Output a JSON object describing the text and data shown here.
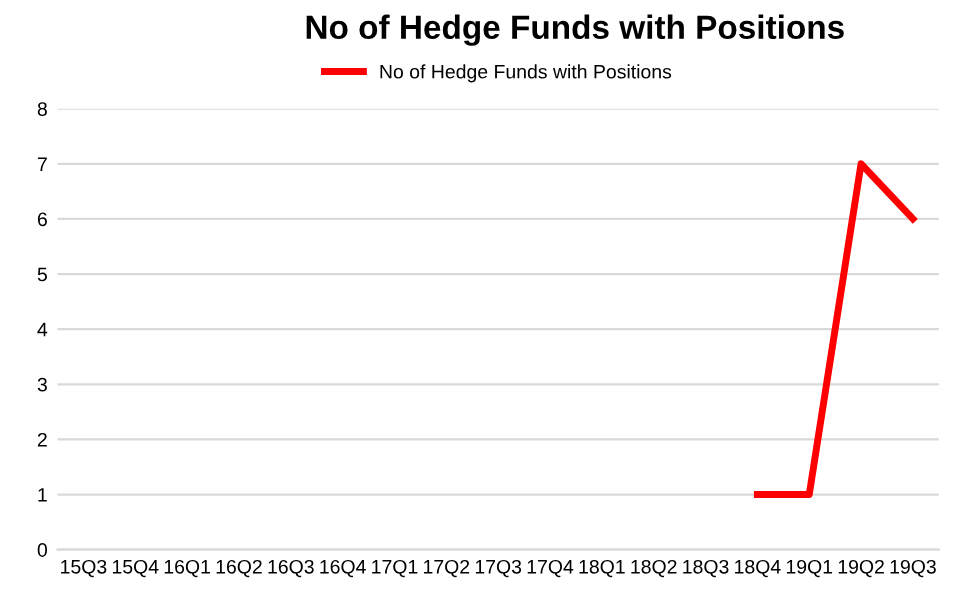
{
  "chart_data": {
    "type": "line",
    "title": "No of Hedge Funds with Positions",
    "categories": [
      "15Q3",
      "15Q4",
      "16Q1",
      "16Q2",
      "16Q3",
      "16Q4",
      "17Q1",
      "17Q2",
      "17Q3",
      "17Q4",
      "18Q1",
      "18Q2",
      "18Q3",
      "18Q4",
      "19Q1",
      "19Q2",
      "19Q3"
    ],
    "series": [
      {
        "name": "No of Hedge Funds with Positions",
        "color": "#ff0000",
        "values": [
          null,
          null,
          null,
          null,
          null,
          null,
          null,
          null,
          null,
          null,
          null,
          null,
          null,
          1,
          1,
          7,
          6
        ]
      }
    ],
    "ylim": [
      0,
      8
    ],
    "yticks": [
      0,
      1,
      2,
      3,
      4,
      5,
      6,
      7,
      8
    ],
    "grid": "y",
    "legend": "top",
    "marker": "none",
    "line_style": "solid"
  }
}
